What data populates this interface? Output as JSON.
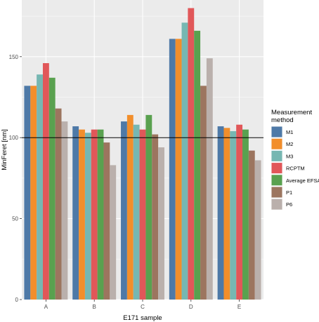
{
  "chart_data": {
    "type": "bar",
    "xlabel": "E171 sample",
    "ylabel": "MinFeret [nm]",
    "categories": [
      "A",
      "B",
      "C",
      "D",
      "E"
    ],
    "ylim": [
      0,
      185
    ],
    "yticks": [
      0,
      50,
      100,
      150
    ],
    "reference_line": 100,
    "grid": true,
    "legend": {
      "title_lines": [
        "Measurement",
        "method"
      ],
      "position": "right"
    },
    "series": [
      {
        "name": "M1",
        "color": "#4e79a7",
        "values": [
          132,
          107,
          110,
          161,
          107
        ]
      },
      {
        "name": "M2",
        "color": "#f28e2b",
        "values": [
          132,
          105,
          114,
          161,
          106
        ]
      },
      {
        "name": "M3",
        "color": "#76b7b2",
        "values": [
          139,
          103,
          108,
          171,
          104
        ]
      },
      {
        "name": "RCPTM",
        "color": "#e15759",
        "values": [
          146,
          105,
          105,
          180,
          108
        ]
      },
      {
        "name": "Average EFSA",
        "color": "#59a14f",
        "values": [
          137,
          105,
          114,
          166,
          105
        ]
      },
      {
        "name": "P1",
        "color": "#9c755f",
        "values": [
          118,
          97,
          102,
          132,
          92
        ]
      },
      {
        "name": "P6",
        "color": "#bab0ac",
        "values": [
          110,
          83,
          94,
          149,
          86
        ]
      }
    ]
  }
}
